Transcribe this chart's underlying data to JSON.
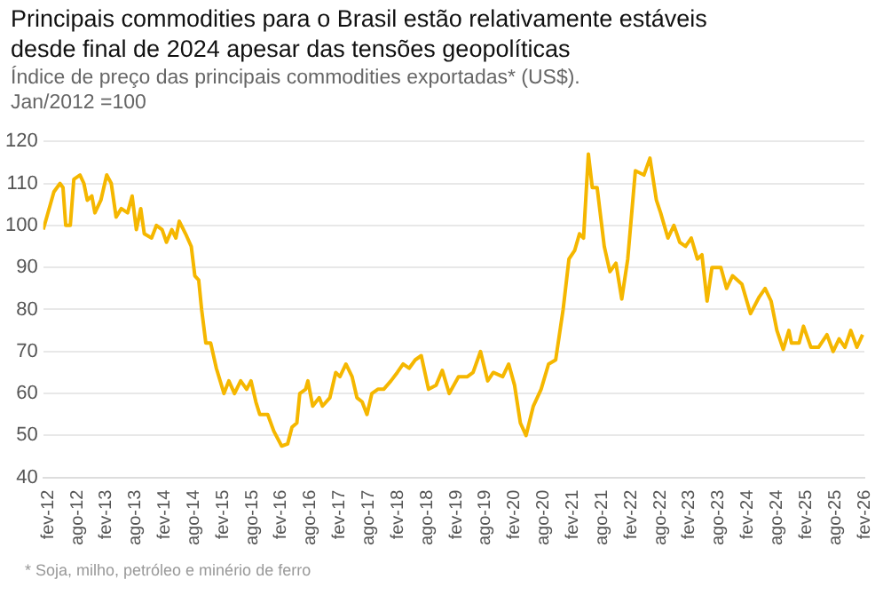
{
  "chart_data": {
    "type": "line",
    "title": "Principais commodities para o Brasil estão relativamente estáveis desde final de 2024 apesar das tensões geopolíticas",
    "subtitle": "Índice de preço das principais commodities exportadas* (US$).\nJan/2012 =100",
    "annotations": [
      "* Soja, milho, petróleo e minério de ferro"
    ],
    "grid": "y",
    "legend": false,
    "marker": "none",
    "line_style": "solid",
    "xlim": [
      "2012-01",
      "2026-02"
    ],
    "xticks": [
      {
        "value": "2012-02",
        "label": "fev-12"
      },
      {
        "value": "2012-08",
        "label": "ago-12"
      },
      {
        "value": "2013-02",
        "label": "fev-13"
      },
      {
        "value": "2013-08",
        "label": "ago-13"
      },
      {
        "value": "2014-02",
        "label": "fev-14"
      },
      {
        "value": "2014-08",
        "label": "ago-14"
      },
      {
        "value": "2015-02",
        "label": "fev-15"
      },
      {
        "value": "2015-08",
        "label": "ago-15"
      },
      {
        "value": "2016-02",
        "label": "fev-16"
      },
      {
        "value": "2016-08",
        "label": "ago-16"
      },
      {
        "value": "2017-02",
        "label": "fev-17"
      },
      {
        "value": "2017-08",
        "label": "ago-17"
      },
      {
        "value": "2018-02",
        "label": "fev-18"
      },
      {
        "value": "2018-08",
        "label": "ago-18"
      },
      {
        "value": "2019-02",
        "label": "fev-19"
      },
      {
        "value": "2019-08",
        "label": "ago-19"
      },
      {
        "value": "2020-02",
        "label": "fev-20"
      },
      {
        "value": "2020-08",
        "label": "ago-20"
      },
      {
        "value": "2021-02",
        "label": "fev-21"
      },
      {
        "value": "2021-08",
        "label": "ago-21"
      },
      {
        "value": "2022-02",
        "label": "fev-22"
      },
      {
        "value": "2022-08",
        "label": "ago-22"
      },
      {
        "value": "2023-02",
        "label": "fev-23"
      },
      {
        "value": "2023-08",
        "label": "ago-23"
      },
      {
        "value": "2024-02",
        "label": "fev-24"
      },
      {
        "value": "2024-08",
        "label": "ago-24"
      },
      {
        "value": "2025-02",
        "label": "fev-25"
      },
      {
        "value": "2025-08",
        "label": "ago-25"
      },
      {
        "value": "2026-02",
        "label": "fev-26"
      }
    ],
    "ylim": [
      40,
      120
    ],
    "yticks": [
      40,
      50,
      60,
      70,
      80,
      90,
      100,
      110,
      120
    ],
    "x": [
      "2012-01",
      "2012-03-07",
      "2012-04-15",
      "2012-05-03",
      "2012-05-20",
      "2012-06-18",
      "2012-07-10",
      "2012-08-18",
      "2012-09-12",
      "2012-10-03",
      "2012-11-01",
      "2012-11-20",
      "2012-12-27",
      "2013-02-03",
      "2013-03-01",
      "2013-04-01",
      "2013-05-03",
      "2013-06-12",
      "2013-07-10",
      "2013-08-06",
      "2013-09-03",
      "2013-09-25",
      "2013-11-10",
      "2013-12-10",
      "2014-01-15",
      "2014-02-12",
      "2014-03-15",
      "2014-04-10",
      "2014-05-01",
      "2014-06-10",
      "2014-07-15",
      "2014-08-07",
      "2014-09-01",
      "2014-09-19",
      "2014-10-15",
      "2014-11-15",
      "2014-12-20",
      "2015-02-07",
      "2015-03-07",
      "2015-04-12",
      "2015-05-20",
      "2015-06-27",
      "2015-07-24",
      "2015-08-24",
      "2015-09-18",
      "2015-11-07",
      "2015-12-15",
      "2016-02-03",
      "2016-03-10",
      "2016-04-07",
      "2016-05-07",
      "2016-05-25",
      "2016-07-01",
      "2016-07-15",
      "2016-08-15",
      "2016-09-25",
      "2016-10-15",
      "2016-12-01",
      "2017-01-07",
      "2017-02-03",
      "2017-03-10",
      "2017-04-18",
      "2017-05-18",
      "2017-06-20",
      "2017-07-20",
      "2017-08-20",
      "2017-09-27",
      "2017-11-03",
      "2017-12-18",
      "2018-01-27",
      "2018-03-03",
      "2018-04-10",
      "2018-05-18",
      "2018-06-25",
      "2018-08-10",
      "2018-09-27",
      "2018-11-05",
      "2018-12-18",
      "2019-02-15",
      "2019-04-10",
      "2019-05-15",
      "2019-07-01",
      "2019-08-15",
      "2019-09-20",
      "2019-11-18",
      "2019-12-25",
      "2020-02-01",
      "2020-03-07",
      "2020-04-12",
      "2020-05-27",
      "2020-07-15",
      "2020-09-01",
      "2020-10-15",
      "2020-12-01",
      "2021-01-07",
      "2021-02-12",
      "2021-03-12",
      "2021-04-07",
      "2021-05-07",
      "2021-06-01",
      "2021-07-01",
      "2021-08-15",
      "2021-09-20",
      "2021-10-27",
      "2021-12-03",
      "2022-01-10",
      "2022-02-27",
      "2022-04-20",
      "2022-05-27",
      "2022-07-07",
      "2022-08-03",
      "2022-09-18",
      "2022-10-25",
      "2022-12-01",
      "2023-01-07",
      "2023-02-12",
      "2023-03-20",
      "2023-04-18",
      "2023-05-20",
      "2023-06-20",
      "2023-08-15",
      "2023-09-20",
      "2023-10-27",
      "2023-12-25",
      "2024-02-18",
      "2024-04-12",
      "2024-05-18",
      "2024-06-25",
      "2024-08-01",
      "2024-09-10",
      "2024-10-15",
      "2024-11-01",
      "2024-12-18",
      "2025-01-15",
      "2025-03-01",
      "2025-04-18",
      "2025-06-10",
      "2025-07-18",
      "2025-08-25",
      "2025-10-01",
      "2025-11-07",
      "2025-12-15",
      "2026-01-20"
    ],
    "series": [
      {
        "color": "#f5b700",
        "values": [
          99,
          108,
          110,
          109,
          100,
          100,
          111,
          112,
          110,
          106,
          107,
          103,
          106,
          112,
          110,
          102,
          104,
          103,
          107,
          99,
          104,
          98,
          97,
          100,
          99,
          96,
          99,
          97,
          101,
          98,
          95,
          88,
          87,
          80,
          72,
          72,
          66,
          60,
          63,
          60,
          63,
          61,
          63,
          58,
          55,
          55,
          51,
          47.5,
          48,
          52,
          53,
          60,
          61,
          63,
          57,
          59,
          57,
          59,
          65,
          64,
          67,
          64,
          59,
          58,
          55,
          60,
          61,
          61,
          63,
          65,
          67,
          66,
          68,
          69,
          61,
          62,
          65.5,
          60,
          64,
          64,
          65,
          70,
          63,
          65,
          64,
          67,
          62,
          53,
          50,
          57,
          61,
          67,
          68,
          80,
          92,
          94,
          98,
          97,
          117,
          109,
          109,
          95,
          89,
          91,
          82.5,
          92,
          113,
          112,
          116,
          106,
          103,
          97,
          100,
          96,
          95,
          97,
          92,
          93,
          82,
          90,
          90,
          85,
          88,
          86,
          79,
          83,
          85,
          82,
          75,
          70.5,
          75,
          72,
          72,
          76,
          71,
          71,
          74,
          70,
          73,
          71,
          75,
          71,
          74
        ]
      }
    ]
  }
}
